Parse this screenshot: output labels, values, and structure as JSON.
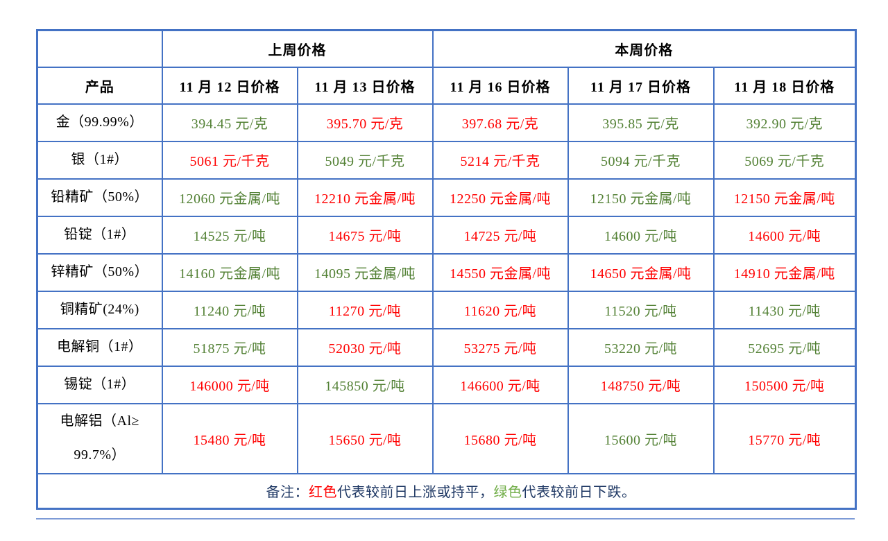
{
  "colors": {
    "border": "#4472C4",
    "up": "#FF0000",
    "down": "#538135",
    "note_text": "#1F3864",
    "note_green": "#70AD47",
    "header_text": "#000000"
  },
  "table": {
    "group_headers": {
      "last_week": "上周价格",
      "this_week": "本周价格"
    },
    "product_header": "产品",
    "date_headers": [
      "11 月 12 日价格",
      "11 月 13 日价格",
      "11 月 16 日价格",
      "11 月 17 日价格",
      "11 月 18 日价格"
    ],
    "trend_legend": {
      "up": "red = rose or flat vs prior day",
      "down": "green = fell vs prior day"
    },
    "rows": [
      {
        "product": "金（99.99%）",
        "tall": false,
        "prices": [
          {
            "value": "394.45",
            "unit": "元/克",
            "trend": "down"
          },
          {
            "value": "395.70",
            "unit": "元/克",
            "trend": "up"
          },
          {
            "value": "397.68",
            "unit": "元/克",
            "trend": "up"
          },
          {
            "value": "395.85",
            "unit": "元/克",
            "trend": "down"
          },
          {
            "value": "392.90",
            "unit": "元/克",
            "trend": "down"
          }
        ]
      },
      {
        "product": "银（1#）",
        "tall": false,
        "prices": [
          {
            "value": "5061",
            "unit": "元/千克",
            "trend": "up"
          },
          {
            "value": "5049",
            "unit": "元/千克",
            "trend": "down"
          },
          {
            "value": "5214",
            "unit": "元/千克",
            "trend": "up"
          },
          {
            "value": "5094",
            "unit": "元/千克",
            "trend": "down"
          },
          {
            "value": "5069",
            "unit": "元/千克",
            "trend": "down"
          }
        ]
      },
      {
        "product": "铅精矿（50%）",
        "tall": false,
        "prices": [
          {
            "value": "12060",
            "unit": "元金属/吨",
            "trend": "down"
          },
          {
            "value": "12210",
            "unit": "元金属/吨",
            "trend": "up"
          },
          {
            "value": "12250",
            "unit": "元金属/吨",
            "trend": "up"
          },
          {
            "value": "12150",
            "unit": "元金属/吨",
            "trend": "down"
          },
          {
            "value": "12150",
            "unit": "元金属/吨",
            "trend": "up"
          }
        ]
      },
      {
        "product": "铅锭（1#）",
        "tall": false,
        "prices": [
          {
            "value": "14525",
            "unit": "元/吨",
            "trend": "down"
          },
          {
            "value": "14675",
            "unit": "元/吨",
            "trend": "up"
          },
          {
            "value": "14725",
            "unit": "元/吨",
            "trend": "up"
          },
          {
            "value": "14600",
            "unit": "元/吨",
            "trend": "down"
          },
          {
            "value": "14600",
            "unit": "元/吨",
            "trend": "up"
          }
        ]
      },
      {
        "product": "锌精矿（50%）",
        "tall": false,
        "prices": [
          {
            "value": "14160",
            "unit": "元金属/吨",
            "trend": "down"
          },
          {
            "value": "14095",
            "unit": "元金属/吨",
            "trend": "down"
          },
          {
            "value": "14550",
            "unit": "元金属/吨",
            "trend": "up"
          },
          {
            "value": "14650",
            "unit": "元金属/吨",
            "trend": "up"
          },
          {
            "value": "14910",
            "unit": "元金属/吨",
            "trend": "up"
          }
        ]
      },
      {
        "product": "铜精矿(24%)",
        "tall": false,
        "prices": [
          {
            "value": "11240",
            "unit": "元/吨",
            "trend": "down"
          },
          {
            "value": "11270",
            "unit": "元/吨",
            "trend": "up"
          },
          {
            "value": "11620",
            "unit": "元/吨",
            "trend": "up"
          },
          {
            "value": "11520",
            "unit": "元/吨",
            "trend": "down"
          },
          {
            "value": "11430",
            "unit": "元/吨",
            "trend": "down"
          }
        ]
      },
      {
        "product": "电解铜（1#）",
        "tall": false,
        "prices": [
          {
            "value": "51875",
            "unit": "元/吨",
            "trend": "down"
          },
          {
            "value": "52030",
            "unit": "元/吨",
            "trend": "up"
          },
          {
            "value": "53275",
            "unit": "元/吨",
            "trend": "up"
          },
          {
            "value": "53220",
            "unit": "元/吨",
            "trend": "down"
          },
          {
            "value": "52695",
            "unit": "元/吨",
            "trend": "down"
          }
        ]
      },
      {
        "product": "锡锭（1#）",
        "tall": false,
        "prices": [
          {
            "value": "146000",
            "unit": "元/吨",
            "trend": "up"
          },
          {
            "value": "145850",
            "unit": "元/吨",
            "trend": "down"
          },
          {
            "value": "146600",
            "unit": "元/吨",
            "trend": "up"
          },
          {
            "value": "148750",
            "unit": "元/吨",
            "trend": "up"
          },
          {
            "value": "150500",
            "unit": "元/吨",
            "trend": "up"
          }
        ]
      },
      {
        "product": "电解铝（Al≥\n99.7%）",
        "tall": true,
        "prices": [
          {
            "value": "15480",
            "unit": "元/吨",
            "trend": "up"
          },
          {
            "value": "15650",
            "unit": "元/吨",
            "trend": "up"
          },
          {
            "value": "15680",
            "unit": "元/吨",
            "trend": "up"
          },
          {
            "value": "15600",
            "unit": "元/吨",
            "trend": "down"
          },
          {
            "value": "15770",
            "unit": "元/吨",
            "trend": "up"
          }
        ]
      }
    ],
    "note": {
      "prefix": "备注：",
      "red_word": "红色",
      "red_desc": "代表较前日上涨或持平，",
      "green_word": "绿色",
      "green_desc": "代表较前日下跌。"
    }
  }
}
